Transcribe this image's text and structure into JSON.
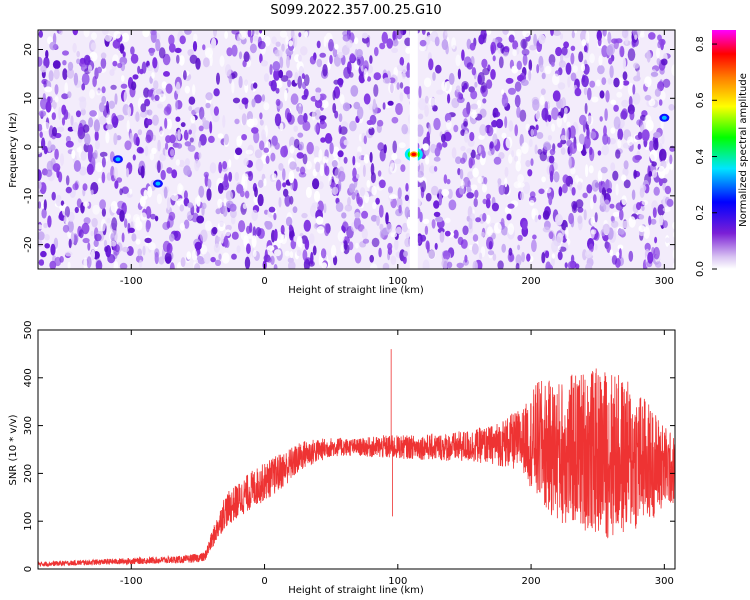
{
  "title": "S099.2022.357.00.25.G10",
  "chart_data": [
    {
      "type": "heatmap",
      "xlabel": "Height of straight line (km)",
      "ylabel": "Frequency (Hz)",
      "xlim": [
        -170,
        308
      ],
      "ylim": [
        -25,
        24
      ],
      "x_ticks": [
        -100,
        0,
        100,
        200,
        300
      ],
      "y_ticks": [
        -20,
        -10,
        0,
        10,
        20
      ],
      "features": [
        {
          "name": "peak",
          "x": 112,
          "y": -1.5,
          "amplitude": 0.8
        },
        {
          "name": "spot",
          "x": -80,
          "y": -7.5,
          "amplitude": 0.3
        },
        {
          "name": "spot",
          "x": -110,
          "y": -2.5,
          "amplitude": 0.25
        },
        {
          "name": "spot",
          "x": 300,
          "y": 6,
          "amplitude": 0.3
        },
        {
          "name": "gap",
          "x": 112,
          "width_km": 3
        }
      ],
      "colorbar": {
        "label": "Normalized spectral amplitude",
        "range": [
          0.0,
          0.85
        ],
        "ticks": [
          "0.0",
          "0.2",
          "0.4",
          "0.6",
          "0.8"
        ],
        "colors": [
          "#ffffff",
          "#7b1fd6",
          "#0000ff",
          "#00e5ff",
          "#00ff00",
          "#ffff00",
          "#ff7f00",
          "#ff0000",
          "#ff00ff"
        ]
      }
    },
    {
      "type": "line",
      "xlabel": "Height of straight line (km)",
      "ylabel": "SNR (10 * v/v)",
      "xlim": [
        -170,
        308
      ],
      "ylim": [
        0,
        500
      ],
      "x_ticks": [
        -100,
        0,
        100,
        200,
        300
      ],
      "y_ticks": [
        0,
        100,
        200,
        300,
        400,
        500
      ],
      "color": "#ee3333",
      "envelope": {
        "x": [
          -170,
          -120,
          -60,
          -45,
          -30,
          -10,
          10,
          30,
          50,
          70,
          90,
          110,
          140,
          170,
          195,
          205,
          220,
          240,
          260,
          280,
          300,
          308
        ],
        "mean": [
          10,
          15,
          20,
          25,
          120,
          165,
          200,
          240,
          255,
          255,
          255,
          255,
          255,
          260,
          270,
          265,
          245,
          250,
          240,
          230,
          215,
          205
        ],
        "spread": [
          5,
          6,
          8,
          10,
          35,
          40,
          40,
          30,
          20,
          18,
          25,
          25,
          30,
          40,
          70,
          130,
          150,
          170,
          180,
          150,
          90,
          70
        ]
      },
      "spikes": [
        {
          "x": 95,
          "y": 460
        },
        {
          "x": 96,
          "y": 110
        }
      ]
    }
  ]
}
